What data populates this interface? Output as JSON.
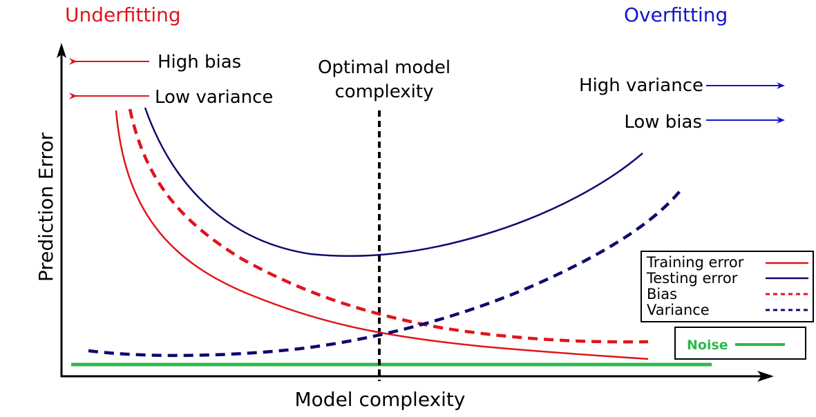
{
  "labels": {
    "underfitting": "Underfitting",
    "overfitting": "Overfitting",
    "high_bias": "High bias",
    "low_variance": "Low variance",
    "high_variance": "High variance",
    "low_bias": "Low bias",
    "optimal_line1": "Optimal model",
    "optimal_line2": "complexity",
    "ylabel": "Prediction Error",
    "xlabel": "Model complexity"
  },
  "legend": {
    "training_error": "Training error",
    "testing_error": "Testing error",
    "bias": "Bias",
    "variance": "Variance",
    "noise": "Noise"
  },
  "colors": {
    "red": "#e0141c",
    "blue": "#0b0b6e",
    "arrow_blue": "#1414c8",
    "green": "#2db84a",
    "black": "#000000"
  }
}
